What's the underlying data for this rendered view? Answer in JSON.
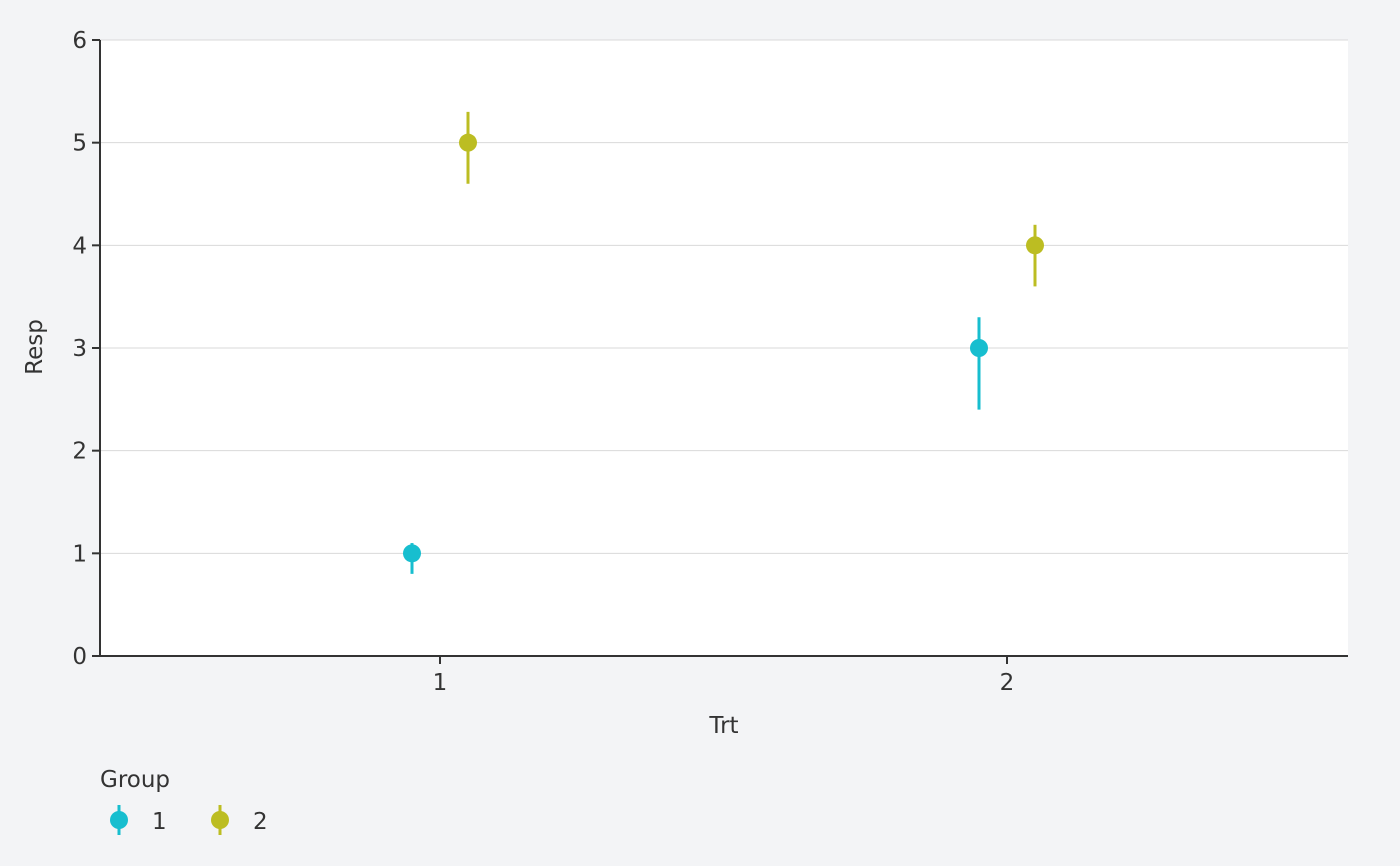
{
  "chart_data": {
    "type": "scatter",
    "subtype": "pointrange",
    "xlabel": "Trt",
    "ylabel": "Resp",
    "categories": [
      "1",
      "2"
    ],
    "ylim": [
      0,
      6
    ],
    "yticks": [
      "0",
      "1",
      "2",
      "3",
      "4",
      "5",
      "6"
    ],
    "grid": "horizontal",
    "legend": {
      "title": "Group",
      "placement": "bottom-left"
    },
    "series": [
      {
        "name": "1",
        "color": "#17becf",
        "points": [
          {
            "x": "1",
            "y": 1,
            "lower": 0.8,
            "upper": 1.1
          },
          {
            "x": "2",
            "y": 3,
            "lower": 2.4,
            "upper": 3.3
          }
        ]
      },
      {
        "name": "2",
        "color": "#bcbd22",
        "points": [
          {
            "x": "1",
            "y": 5,
            "lower": 4.6,
            "upper": 5.3
          },
          {
            "x": "2",
            "y": 4,
            "lower": 3.6,
            "upper": 4.2
          }
        ]
      }
    ]
  }
}
